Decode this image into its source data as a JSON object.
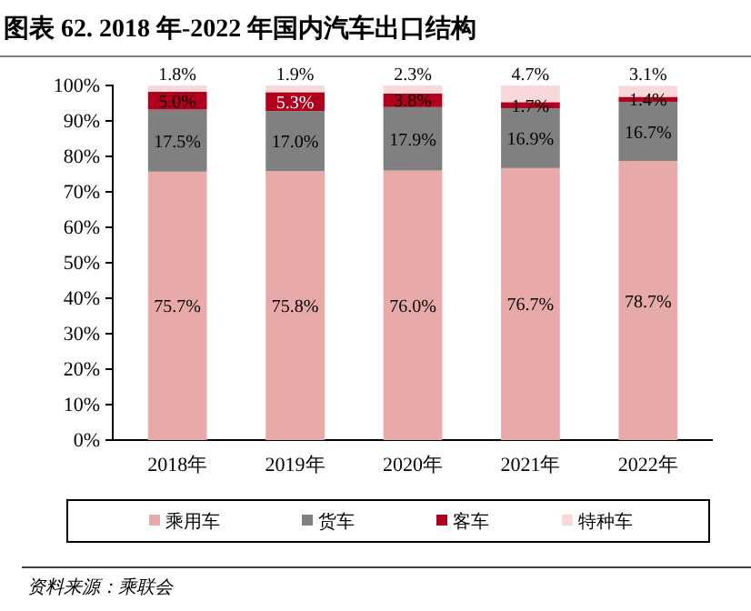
{
  "chart_data": {
    "type": "bar",
    "stacked": true,
    "title": "图表 62. 2018 年-2022 年国内汽车出口结构",
    "annotations": [
      "资料来源：乘联会"
    ],
    "categories": [
      "2018年",
      "2019年",
      "2020年",
      "2021年",
      "2022年"
    ],
    "series": [
      {
        "name": "乘用车",
        "color": "#e8aaa8",
        "values": [
          75.7,
          75.8,
          76.0,
          76.7,
          78.7
        ],
        "value_labels": [
          "75.7%",
          "75.8%",
          "76.0%",
          "76.7%",
          "78.7%"
        ]
      },
      {
        "name": "货车",
        "color": "#808080",
        "values": [
          17.5,
          17.0,
          17.9,
          16.9,
          16.7
        ],
        "value_labels": [
          "17.5%",
          "17.0%",
          "17.9%",
          "16.9%",
          "16.7%"
        ]
      },
      {
        "name": "客车",
        "color": "#b0001e",
        "values": [
          5.0,
          5.3,
          3.8,
          1.7,
          1.4
        ],
        "value_labels": [
          "5.0%",
          "5.3%",
          "3.8%",
          "1.7%",
          "1.4%"
        ]
      },
      {
        "name": "特种车",
        "color": "#f8d8d8",
        "values": [
          1.8,
          1.9,
          2.3,
          4.7,
          3.1
        ],
        "value_labels": [
          "1.8%",
          "1.9%",
          "2.3%",
          "4.7%",
          "3.1%"
        ]
      }
    ],
    "ylim": [
      0,
      100
    ],
    "yticks": [
      {
        "value": 0,
        "label": "0%"
      },
      {
        "value": 10,
        "label": "10%"
      },
      {
        "value": 20,
        "label": "20%"
      },
      {
        "value": 30,
        "label": "30%"
      },
      {
        "value": 40,
        "label": "40%"
      },
      {
        "value": 50,
        "label": "50%"
      },
      {
        "value": 60,
        "label": "60%"
      },
      {
        "value": 70,
        "label": "70%"
      },
      {
        "value": 80,
        "label": "80%"
      },
      {
        "value": 90,
        "label": "90%"
      },
      {
        "value": 100,
        "label": "100%"
      }
    ],
    "grid": false,
    "legend": "bottom"
  }
}
